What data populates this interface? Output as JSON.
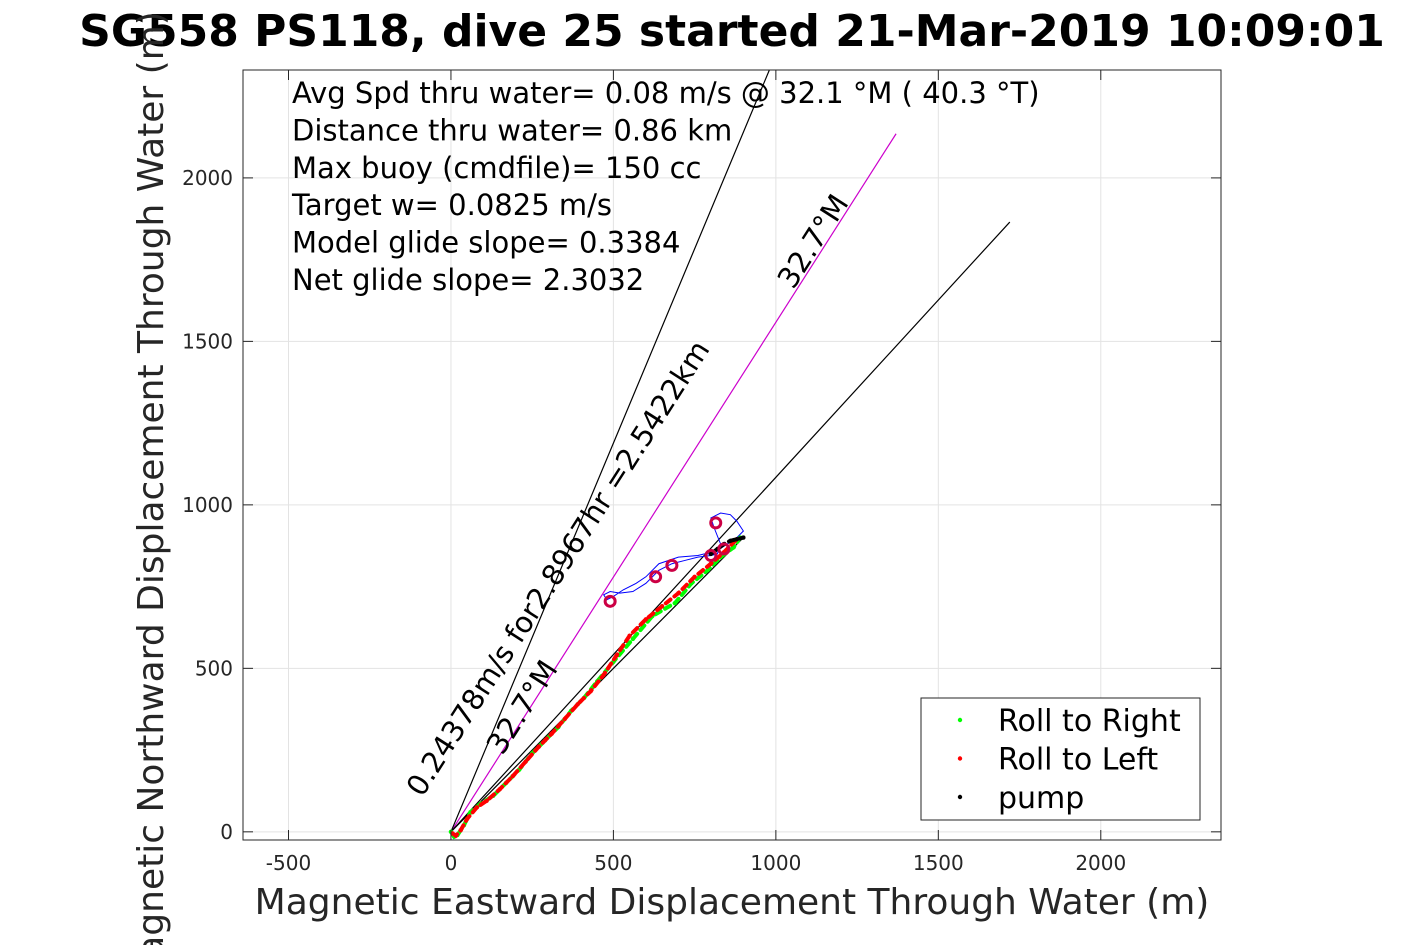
{
  "chart_data": {
    "type": "line",
    "title": "SG558 PS118, dive 25 started 21-Mar-2019 10:09:01",
    "xlabel": "Magnetic Eastward Displacement Through Water (m)",
    "ylabel": "Magnetic Northward Displacement Through Water (m)",
    "xlim": [
      -640,
      2370
    ],
    "ylim": [
      -25,
      2330
    ],
    "xticks": [
      -500,
      0,
      500,
      1000,
      1500,
      2000
    ],
    "xtick_labels": [
      "-500",
      "0",
      "500",
      "1000",
      "1500",
      "2000"
    ],
    "yticks": [
      0,
      500,
      1000,
      1500,
      2000
    ],
    "ytick_labels": [
      "0",
      "500",
      "1000",
      "1500",
      "2000"
    ],
    "grid": true,
    "text_block": [
      "Avg Spd thru water=  0.08 m/s @  32.1 °M ( 40.3 °T)",
      "Distance thru water=  0.86 km",
      "Max buoy (cmdfile)= 150 cc",
      "Target w= 0.0825 m/s",
      "Model glide slope= 0.3384",
      "Net glide slope= 2.3032"
    ],
    "rotated_annotations": [
      {
        "text": "0.24378m/s for2.8967hr =2.5422km",
        "at": [
          355,
          790
        ],
        "angle": 57.3
      },
      {
        "text": "32.7°M",
        "at": [
          1140,
          1790
        ],
        "angle": 57.3
      },
      {
        "text": "32.7°M",
        "at": [
          245,
          365
        ],
        "angle": 57.3
      }
    ],
    "reference_lines": [
      {
        "name": "heading line",
        "color": "#cc00cc",
        "points": [
          [
            0,
            0
          ],
          [
            1370,
            2135
          ]
        ]
      },
      {
        "name": "black line 1",
        "color": "#000000",
        "points": [
          [
            0,
            0
          ],
          [
            980,
            2330
          ]
        ]
      },
      {
        "name": "black line 2",
        "color": "#000000",
        "points": [
          [
            0,
            0
          ],
          [
            1720,
            1865
          ]
        ]
      },
      {
        "name": "black line 3",
        "color": "#000000",
        "points": [
          [
            0,
            0
          ],
          [
            900,
            900
          ]
        ]
      }
    ],
    "series": [
      {
        "name": "Roll to Right",
        "color": "#00ff00",
        "marker": "dot",
        "x": [
          0,
          10,
          20,
          40,
          60,
          90,
          130,
          170,
          210,
          250,
          290,
          330,
          370,
          410,
          450,
          500,
          560,
          620,
          690,
          740,
          790,
          830,
          870,
          890
        ],
        "y": [
          0,
          -15,
          -10,
          20,
          60,
          85,
          110,
          150,
          190,
          240,
          280,
          320,
          370,
          410,
          460,
          520,
          590,
          660,
          700,
          760,
          800,
          840,
          870,
          900
        ]
      },
      {
        "name": "Roll to Left",
        "color": "#ff0000",
        "marker": "dot",
        "x": [
          5,
          15,
          30,
          50,
          80,
          110,
          150,
          190,
          230,
          270,
          310,
          350,
          390,
          430,
          470,
          510,
          550,
          600,
          650,
          700,
          750,
          800,
          840,
          880
        ],
        "y": [
          -5,
          -12,
          5,
          40,
          75,
          95,
          130,
          170,
          215,
          260,
          300,
          345,
          390,
          430,
          480,
          540,
          600,
          650,
          690,
          730,
          780,
          820,
          855,
          895
        ]
      },
      {
        "name": "pump",
        "color": "#000000",
        "marker": "dot",
        "x": [
          800,
          820,
          840,
          860,
          880,
          900
        ],
        "y": [
          850,
          865,
          880,
          890,
          895,
          900
        ]
      }
    ],
    "surface_track": {
      "color": "#0000ff",
      "x": [
        810,
        780,
        760,
        700,
        640,
        600,
        570,
        530,
        500,
        480,
        470,
        490,
        520,
        560,
        600,
        640,
        680,
        720,
        760,
        800,
        820,
        830,
        810,
        800,
        830,
        860,
        880,
        900,
        880,
        850,
        820,
        810
      ],
      "y": [
        850,
        850,
        845,
        840,
        820,
        780,
        760,
        740,
        720,
        710,
        725,
        735,
        730,
        735,
        760,
        800,
        820,
        830,
        840,
        845,
        850,
        880,
        930,
        960,
        975,
        970,
        950,
        920,
        900,
        880,
        860,
        850
      ]
    },
    "loop_markers": {
      "color": "#cc0044",
      "points": [
        [
          490,
          705
        ],
        [
          630,
          780
        ],
        [
          680,
          815
        ],
        [
          815,
          945
        ],
        [
          800,
          845
        ],
        [
          840,
          865
        ]
      ]
    },
    "legend": {
      "position": "bottom-right",
      "entries": [
        "Roll to Right",
        "Roll to Left",
        "pump"
      ],
      "colors": [
        "#00ff00",
        "#ff0000",
        "#000000"
      ]
    }
  }
}
